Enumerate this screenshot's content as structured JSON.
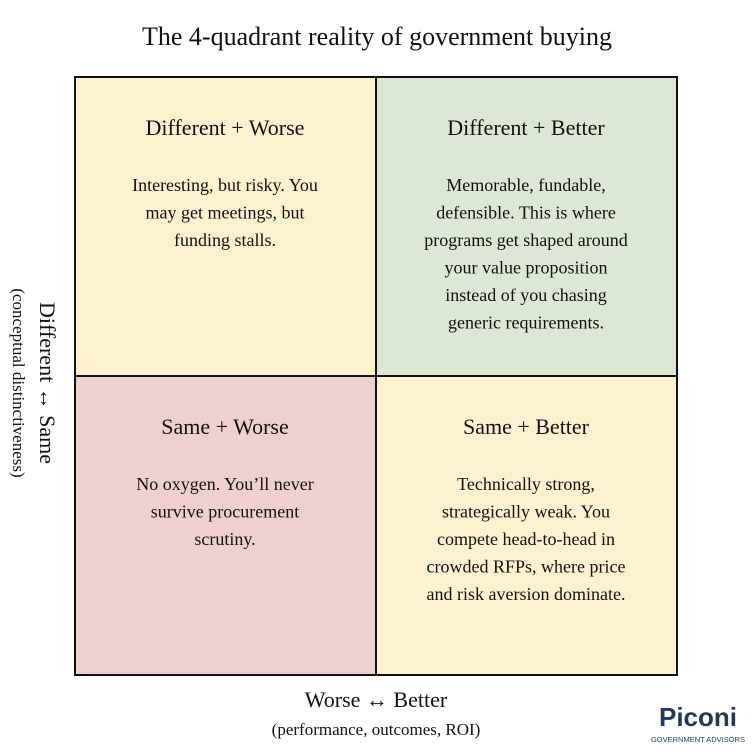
{
  "title": "The 4-quadrant reality of government buying",
  "quadrants": [
    {
      "title": "Different + Worse",
      "lines": [
        "Interesting, but risky. You",
        "may get meetings, but",
        "funding stalls."
      ]
    },
    {
      "title": "Different + Better",
      "lines": [
        "Memorable, fundable,",
        "defensible. This is where",
        "programs get shaped around",
        "your value proposition",
        "instead of you chasing",
        "generic requirements."
      ]
    },
    {
      "title": "Same + Worse",
      "lines": [
        "No oxygen. You’ll never",
        "survive procurement",
        "scrutiny."
      ]
    },
    {
      "title": "Same + Better",
      "lines": [
        "Technically strong,",
        "strategically weak. You",
        "compete head-to-head in",
        "crowded RFPs, where price",
        "and risk aversion dominate."
      ]
    }
  ],
  "y_axis": {
    "label": "Different ↔ Same",
    "sublabel": "(conceptual distinctiveness)"
  },
  "x_axis": {
    "label": "Worse ↔ Better",
    "sublabel": "(performance, outcomes, ROI)"
  },
  "logo": {
    "name": "Piconi",
    "tagline": "GOVERNMENT ADVISORS"
  }
}
